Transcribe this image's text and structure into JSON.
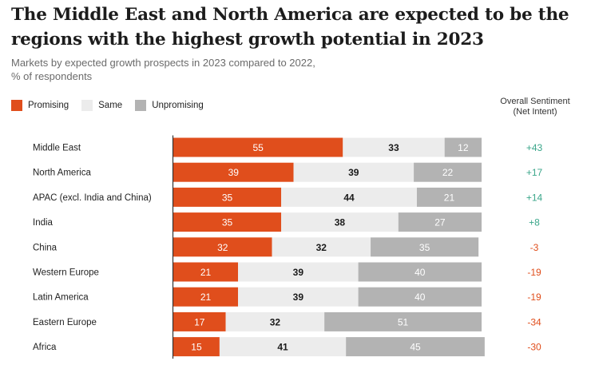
{
  "title": "The Middle East and North America are expected to be the regions with the highest growth potential in 2023",
  "subtitle_line1": "Markets by expected growth prospects in 2023 compared to 2022,",
  "subtitle_line2": "% of respondents",
  "legend": [
    {
      "label": "Promising",
      "color": "#e04e1c"
    },
    {
      "label": "Same",
      "color": "#ececec"
    },
    {
      "label": "Unpromising",
      "color": "#b3b3b3"
    }
  ],
  "sentiment_header_line1": "Overall Sentiment",
  "sentiment_header_line2": "(Net Intent)",
  "colors": {
    "promising": "#e04e1c",
    "same": "#ececec",
    "unpromising": "#b3b3b3",
    "positive_sentiment": "#3aa68a",
    "negative_sentiment": "#e04e1c",
    "axis": "#333333"
  },
  "chart_data": {
    "type": "bar",
    "orientation": "horizontal",
    "stacked": true,
    "categories": [
      "Middle East",
      "North America",
      "APAC (excl. India and China)",
      "India",
      "China",
      "Western Europe",
      "Latin America",
      "Eastern Europe",
      "Africa"
    ],
    "series": [
      {
        "name": "Promising",
        "values": [
          55,
          39,
          35,
          35,
          32,
          21,
          21,
          17,
          15
        ]
      },
      {
        "name": "Same",
        "values": [
          33,
          39,
          44,
          38,
          32,
          39,
          39,
          32,
          41
        ]
      },
      {
        "name": "Unpromising",
        "values": [
          12,
          22,
          21,
          27,
          35,
          40,
          40,
          51,
          45
        ]
      }
    ],
    "net_intent": [
      "+43",
      "+17",
      "+14",
      "+8",
      "-3",
      "-19",
      "-19",
      "-34",
      "-30"
    ],
    "title": "The Middle East and North America are expected to be the regions with the highest growth potential in 2023",
    "xlabel": "",
    "ylabel": "",
    "xlim": [
      0,
      100
    ],
    "grid": false,
    "legend_position": "top-left"
  }
}
